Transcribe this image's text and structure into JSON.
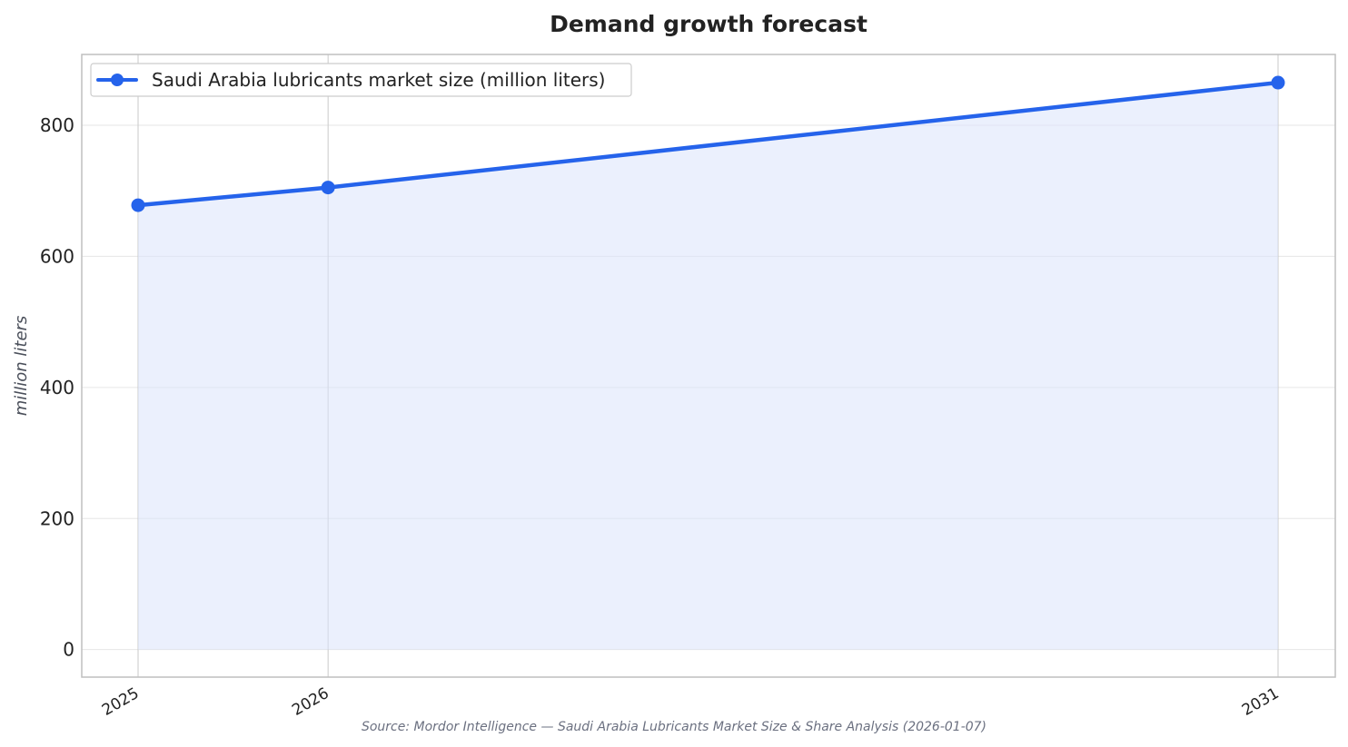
{
  "colors": {
    "line": "#2563eb",
    "fill": "#dbe4fb",
    "grid": "#e6e6e6",
    "frame": "#bfbfbf"
  },
  "chart_data": {
    "type": "area",
    "title": "Demand growth forecast",
    "xlabel": "",
    "ylabel": "million liters",
    "x": [
      "2025",
      "2026",
      "2031"
    ],
    "series": [
      {
        "name": "Saudi Arabia lubricants market size (million liters)",
        "values": [
          678,
          705,
          865
        ]
      }
    ],
    "yticks": [
      0,
      200,
      400,
      600,
      800
    ],
    "ylim": [
      -42,
      908
    ],
    "grid": true,
    "legend": "top-left",
    "source": "Source: Mordor Intelligence — Saudi Arabia Lubricants Market Size & Share Analysis (2026-01-07)"
  }
}
